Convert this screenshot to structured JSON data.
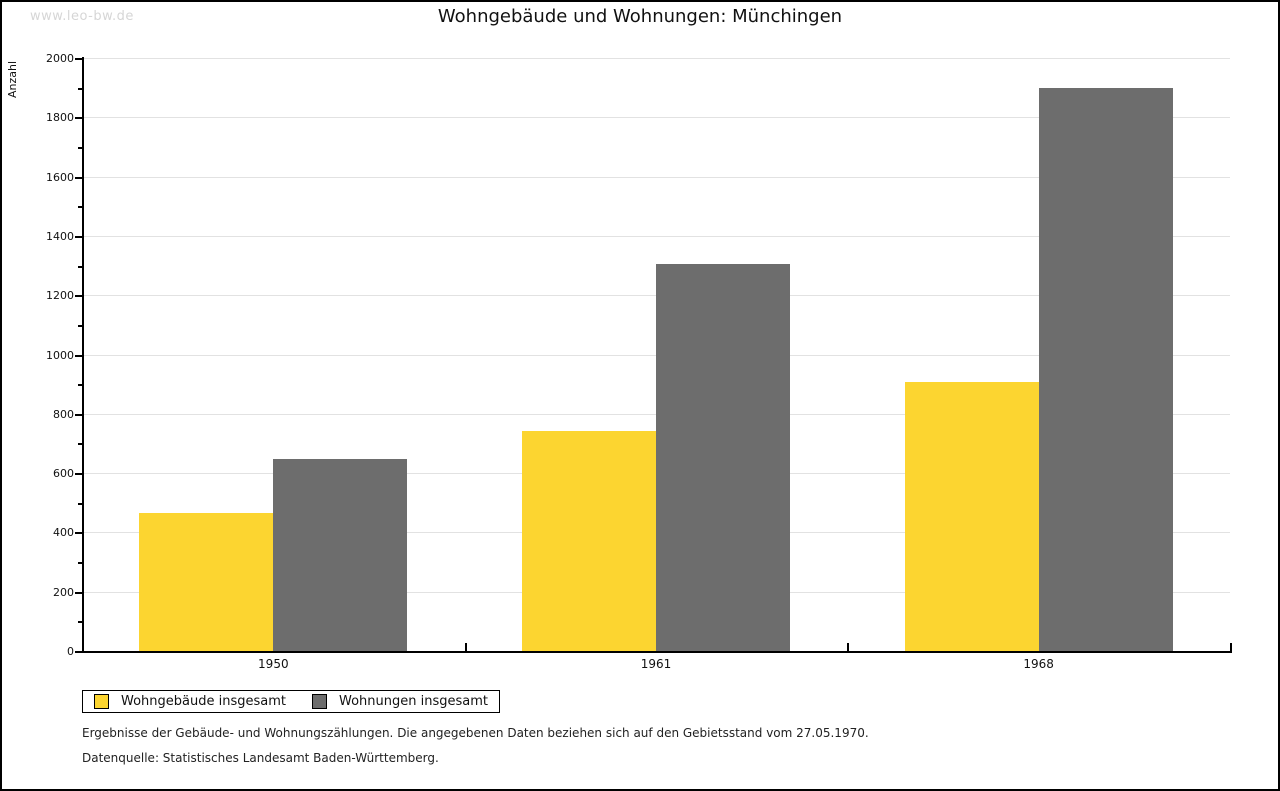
{
  "page": {
    "watermark": "www.leo-bw.de",
    "footnotes": [
      "Ergebnisse der Gebäude- und Wohnungszählungen. Die angegebenen Daten beziehen sich auf den Gebietsstand vom 27.05.1970.",
      "Datenquelle: Statistisches Landesamt Baden-Württemberg."
    ]
  },
  "chart_data": {
    "type": "bar",
    "title": "Wohngebäude und Wohnungen: Münchingen",
    "xlabel": "",
    "ylabel": "Anzahl",
    "categories": [
      "1950",
      "1961",
      "1968"
    ],
    "series": [
      {
        "name": "Wohngebäude insgesamt",
        "color": "#FCD530",
        "values": [
          465,
          742,
          908
        ]
      },
      {
        "name": "Wohnungen insgesamt",
        "color": "#6D6D6D",
        "values": [
          647,
          1304,
          1898
        ]
      }
    ],
    "ylim": [
      0,
      2000
    ],
    "ytick_step": 200,
    "minor_tick_step": 100,
    "grid": "horizontal",
    "gridline_color": "#e2e2e2",
    "axis_color": "#000000",
    "legend_position": "bottom-left"
  }
}
